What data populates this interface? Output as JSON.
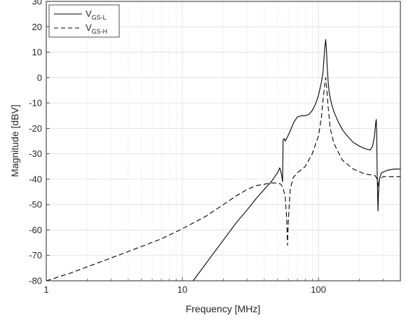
{
  "chart_data": {
    "type": "line",
    "xlabel": "Frequency [MHz]",
    "ylabel": "Magnitude [dBV]",
    "xscale": "log",
    "xlim": [
      1,
      400
    ],
    "ylim": [
      -80,
      30
    ],
    "x_ticks": [
      1,
      10,
      100
    ],
    "x_tick_labels": [
      "1",
      "10",
      "100"
    ],
    "y_ticks": [
      -80,
      -70,
      -60,
      -50,
      -40,
      -30,
      -20,
      -10,
      0,
      10,
      20,
      30
    ],
    "y_tick_labels": [
      "-80",
      "-70",
      "-60",
      "-50",
      "-40",
      "-30",
      "-20",
      "-10",
      "0",
      "10",
      "20",
      "30"
    ],
    "grid": true,
    "minor_grid": true,
    "legend_position": "top-left",
    "series": [
      {
        "name_main": "V",
        "name_sub": "GS-L",
        "line_style": "solid",
        "color": "#000000",
        "points": [
          [
            12,
            -80
          ],
          [
            15,
            -73
          ],
          [
            20,
            -64
          ],
          [
            25,
            -57
          ],
          [
            30,
            -52
          ],
          [
            35,
            -47.5
          ],
          [
            40,
            -44
          ],
          [
            45,
            -41
          ],
          [
            50,
            -37.5
          ],
          [
            52,
            -35.5
          ],
          [
            53.5,
            -38
          ],
          [
            54.5,
            -41
          ],
          [
            55,
            -24.5
          ],
          [
            56,
            -24
          ],
          [
            57,
            -25
          ],
          [
            59,
            -23.5
          ],
          [
            62,
            -21
          ],
          [
            66,
            -17.5
          ],
          [
            70,
            -15.5
          ],
          [
            75,
            -15
          ],
          [
            80,
            -15
          ],
          [
            85,
            -14.5
          ],
          [
            90,
            -13
          ],
          [
            95,
            -10.5
          ],
          [
            100,
            -7
          ],
          [
            105,
            -2
          ],
          [
            108,
            2
          ],
          [
            110,
            8
          ],
          [
            111.5,
            12
          ],
          [
            113,
            15
          ],
          [
            114.5,
            11
          ],
          [
            116,
            4
          ],
          [
            118,
            -2
          ],
          [
            120,
            -6
          ],
          [
            125,
            -10.5
          ],
          [
            130,
            -13.5
          ],
          [
            140,
            -17.5
          ],
          [
            150,
            -20.5
          ],
          [
            160,
            -22.5
          ],
          [
            180,
            -25.5
          ],
          [
            200,
            -27
          ],
          [
            220,
            -28
          ],
          [
            240,
            -28.5
          ],
          [
            250,
            -27
          ],
          [
            258,
            -23
          ],
          [
            264,
            -17.5
          ],
          [
            266,
            -16.5
          ],
          [
            268,
            -22
          ],
          [
            270,
            -37
          ],
          [
            272,
            -45
          ],
          [
            274,
            -52.5
          ],
          [
            276,
            -46
          ],
          [
            280,
            -40
          ],
          [
            290,
            -37.5
          ],
          [
            320,
            -36.5
          ],
          [
            360,
            -36
          ],
          [
            400,
            -36
          ]
        ]
      },
      {
        "name_main": "V",
        "name_sub": "GS-H",
        "line_style": "dashed",
        "color": "#000000",
        "points": [
          [
            1,
            -80
          ],
          [
            1.5,
            -77
          ],
          [
            2,
            -74.5
          ],
          [
            3,
            -71
          ],
          [
            4,
            -68.5
          ],
          [
            5,
            -66.5
          ],
          [
            7,
            -63.5
          ],
          [
            10,
            -59.5
          ],
          [
            15,
            -54.5
          ],
          [
            20,
            -50
          ],
          [
            25,
            -46.5
          ],
          [
            30,
            -44
          ],
          [
            35,
            -42.5
          ],
          [
            40,
            -42
          ],
          [
            45,
            -41.5
          ],
          [
            50,
            -41.5
          ],
          [
            53,
            -42
          ],
          [
            55,
            -43.5
          ],
          [
            57,
            -47
          ],
          [
            58.5,
            -56
          ],
          [
            59.2,
            -66
          ],
          [
            60,
            -57
          ],
          [
            62,
            -44
          ],
          [
            65,
            -39.5
          ],
          [
            70,
            -37.5
          ],
          [
            80,
            -35
          ],
          [
            90,
            -30
          ],
          [
            100,
            -23
          ],
          [
            105,
            -16
          ],
          [
            108,
            -9
          ],
          [
            111,
            -3
          ],
          [
            113,
            0
          ],
          [
            115,
            -4
          ],
          [
            118,
            -12
          ],
          [
            122,
            -20
          ],
          [
            130,
            -26
          ],
          [
            150,
            -32.5
          ],
          [
            180,
            -36
          ],
          [
            220,
            -38
          ],
          [
            260,
            -38.5
          ],
          [
            270,
            -40
          ],
          [
            275,
            -43
          ],
          [
            280,
            -40
          ],
          [
            300,
            -39
          ],
          [
            350,
            -39
          ],
          [
            400,
            -39
          ]
        ]
      }
    ]
  }
}
